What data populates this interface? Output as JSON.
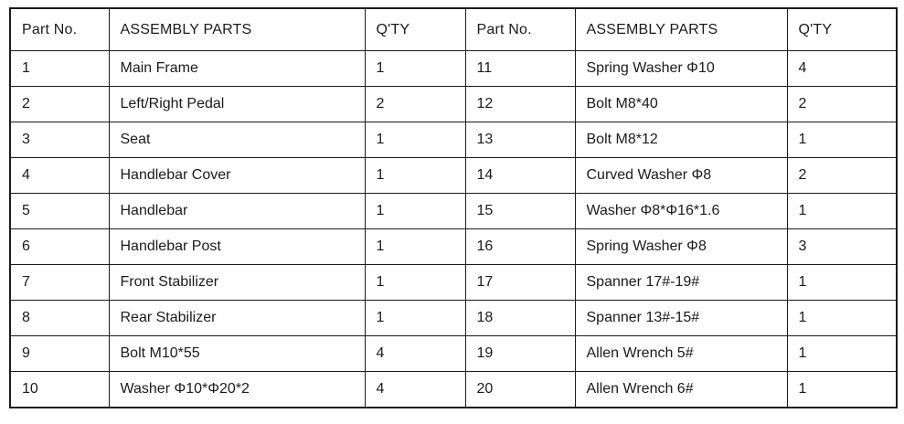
{
  "table": {
    "headers": {
      "part_no": "Part No.",
      "assembly_parts": "ASSEMBLY PARTS",
      "qty": "Q'TY"
    },
    "rows": [
      {
        "left": {
          "no": "1",
          "part": "Main Frame",
          "qty": "1"
        },
        "right": {
          "no": "11",
          "part": "Spring Washer Φ10",
          "qty": "4"
        }
      },
      {
        "left": {
          "no": "2",
          "part": "Left/Right Pedal",
          "qty": "2"
        },
        "right": {
          "no": "12",
          "part": "Bolt M8*40",
          "qty": "2"
        }
      },
      {
        "left": {
          "no": "3",
          "part": "Seat",
          "qty": "1"
        },
        "right": {
          "no": "13",
          "part": "Bolt M8*12",
          "qty": "1"
        }
      },
      {
        "left": {
          "no": "4",
          "part": "Handlebar Cover",
          "qty": "1"
        },
        "right": {
          "no": "14",
          "part": "Curved Washer Φ8",
          "qty": "2"
        }
      },
      {
        "left": {
          "no": "5",
          "part": "Handlebar",
          "qty": "1"
        },
        "right": {
          "no": "15",
          "part": "Washer Φ8*Φ16*1.6",
          "qty": "1"
        }
      },
      {
        "left": {
          "no": "6",
          "part": "Handlebar Post",
          "qty": "1"
        },
        "right": {
          "no": "16",
          "part": "Spring Washer Φ8",
          "qty": "3"
        }
      },
      {
        "left": {
          "no": "7",
          "part": "Front Stabilizer",
          "qty": "1"
        },
        "right": {
          "no": "17",
          "part": "Spanner 17#-19#",
          "qty": "1"
        }
      },
      {
        "left": {
          "no": "8",
          "part": "Rear Stabilizer",
          "qty": "1"
        },
        "right": {
          "no": "18",
          "part": "Spanner 13#-15#",
          "qty": "1"
        }
      },
      {
        "left": {
          "no": "9",
          "part": "Bolt M10*55",
          "qty": "4"
        },
        "right": {
          "no": "19",
          "part": "Allen Wrench 5#",
          "qty": "1"
        }
      },
      {
        "left": {
          "no": "10",
          "part": "Washer Φ10*Φ20*2",
          "qty": "4"
        },
        "right": {
          "no": "20",
          "part": "Allen Wrench 6#",
          "qty": "1"
        }
      }
    ]
  }
}
